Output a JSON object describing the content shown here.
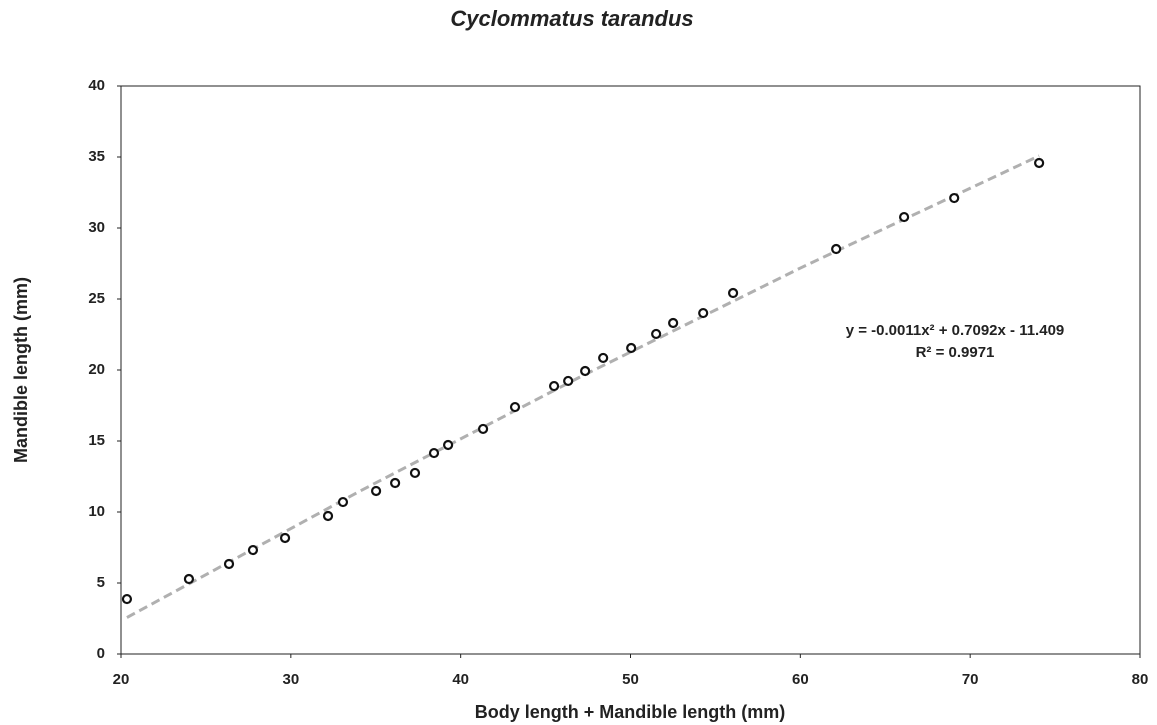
{
  "chart_data": {
    "type": "scatter",
    "title": "Cyclommatus tarandus",
    "xlabel": "Body length + Mandible length (mm)",
    "ylabel": "Mandible length (mm)",
    "annotations": [
      "y = -0.0011x² + 0.7092x - 11.409",
      "R² = 0.9971"
    ],
    "xlim": [
      20,
      80
    ],
    "xticks": [
      20,
      30,
      40,
      50,
      60,
      70,
      80
    ],
    "ylim": [
      0,
      40
    ],
    "yticks": [
      0,
      5,
      10,
      15,
      20,
      25,
      30,
      35,
      40
    ],
    "series": [
      {
        "name": "Cyclommatus tarandus",
        "color": "#111111",
        "x": [
          20.35,
          24.0,
          26.36,
          27.77,
          29.66,
          32.19,
          33.07,
          35.02,
          36.14,
          37.31,
          38.43,
          39.26,
          41.32,
          43.2,
          45.5,
          46.33,
          47.33,
          48.39,
          50.04,
          51.51,
          52.51,
          54.28,
          56.04,
          62.11,
          66.11,
          69.06,
          74.06
        ],
        "values": [
          3.87,
          5.28,
          6.34,
          7.32,
          8.17,
          9.72,
          10.7,
          11.48,
          12.04,
          12.75,
          14.15,
          14.72,
          15.85,
          17.39,
          18.87,
          19.23,
          19.93,
          20.85,
          21.55,
          22.54,
          23.31,
          24.01,
          25.42,
          28.52,
          30.77,
          32.11,
          34.58
        ]
      }
    ],
    "trendline": {
      "color": "#b0b0b0",
      "x": [
        20.35,
        34,
        47,
        60,
        74.06
      ],
      "values": [
        2.57,
        11.43,
        19.49,
        27.18,
        35.08
      ]
    }
  }
}
